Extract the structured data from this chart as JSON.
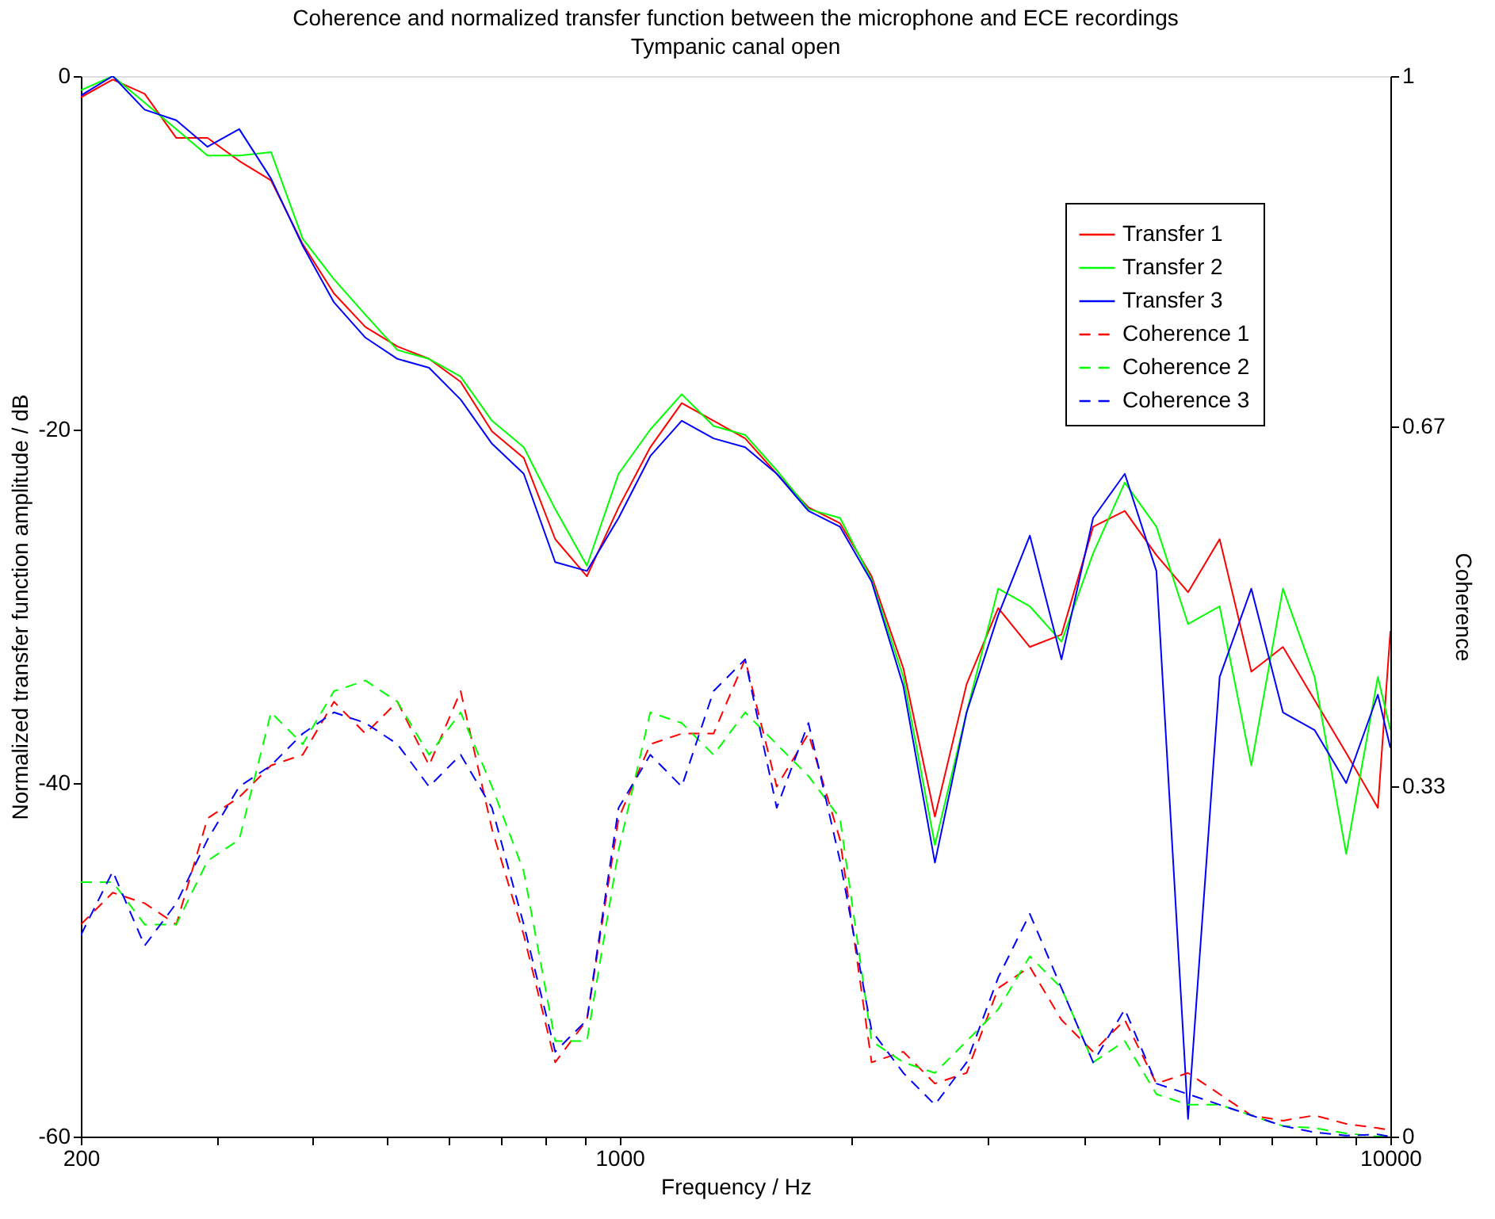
{
  "chart_data": {
    "type": "line",
    "title": "Coherence and normalized transfer function between the microphone and ECE recordings",
    "subtitle": "Tympanic canal open",
    "xlabel": "Frequency / Hz",
    "ylabel": "Normalized transfer function amplitude / dB",
    "y2label": "Coherence",
    "log": "x",
    "xlim": [
      200,
      10000
    ],
    "xticks": [
      200,
      {
        "value": 300,
        "label": null
      },
      {
        "value": 400,
        "label": null
      },
      {
        "value": 500,
        "label": null
      },
      {
        "value": 600,
        "label": null
      },
      {
        "value": 700,
        "label": null
      },
      {
        "value": 800,
        "label": null
      },
      {
        "value": 900,
        "label": null
      },
      1000,
      {
        "value": 2000,
        "label": null
      },
      {
        "value": 3000,
        "label": null
      },
      {
        "value": 4000,
        "label": null
      },
      {
        "value": 5000,
        "label": null
      },
      {
        "value": 6000,
        "label": null
      },
      {
        "value": 7000,
        "label": null
      },
      {
        "value": 8000,
        "label": null
      },
      {
        "value": 9000,
        "label": null
      },
      10000
    ],
    "ylim": [
      -60,
      0
    ],
    "yticks": [
      -60,
      -40,
      -20,
      0
    ],
    "y2lim": [
      0,
      1
    ],
    "y2ticks": [
      0,
      0.33,
      0.67,
      1
    ],
    "legend": "top right",
    "grid": false,
    "x": [
      200,
      220,
      242,
      266,
      292,
      321,
      353,
      388,
      426,
      468,
      515,
      566,
      622,
      683,
      751,
      825,
      907,
      997,
      1096,
      1204,
      1324,
      1455,
      1599,
      1758,
      1932,
      2123,
      2334,
      2565,
      2820,
      3099,
      3406,
      3744,
      4115,
      4523,
      4971,
      5464,
      6005,
      6601,
      7255,
      7974,
      8764,
      9633,
      10000
    ],
    "series": [
      {
        "name": "Transfer 1",
        "color": "#ff0000",
        "line_style": "solid",
        "values": [
          -1.2,
          -0.2,
          -1.0,
          -3.5,
          -3.5,
          -4.8,
          -5.9,
          -9.5,
          -12.3,
          -14.2,
          -15.3,
          -16,
          -17.3,
          -20.1,
          -21.6,
          -26.2,
          -28.3,
          -24.4,
          -21,
          -18.5,
          -19.5,
          -20.5,
          -22.5,
          -24.4,
          -25.3,
          -28.3,
          -33.5,
          -41.9,
          -34.4,
          -30.1,
          -32.3,
          -31.6,
          -25.5,
          -24.6,
          -27.1,
          -29.2,
          -26.2,
          -33.7,
          -32.3,
          -35.3,
          -38.3,
          -41.4,
          -31.4
        ]
      },
      {
        "name": "Transfer 2",
        "color": "#00ff00",
        "line_style": "solid",
        "values": [
          -0.8,
          0,
          -1.5,
          -3,
          -4.5,
          -4.5,
          -4.3,
          -9.2,
          -11.5,
          -13.5,
          -15.5,
          -16,
          -17,
          -19.5,
          -21,
          -24.5,
          -27.7,
          -22.5,
          -20,
          -18,
          -19.8,
          -20.3,
          -22.3,
          -24.5,
          -25,
          -28.5,
          -34,
          -43.5,
          -36,
          -29,
          -30,
          -32,
          -27,
          -23,
          -25.5,
          -31,
          -30,
          -39,
          -29,
          -34,
          -44,
          -34,
          -37
        ]
      },
      {
        "name": "Transfer 3",
        "color": "#0000ff",
        "line_style": "solid",
        "values": [
          -1.1,
          0,
          -1.9,
          -2.5,
          -4,
          -3,
          -5.8,
          -9.6,
          -12.8,
          -14.8,
          -16,
          -16.5,
          -18.3,
          -20.8,
          -22.5,
          -27.5,
          -28,
          -25,
          -21.5,
          -19.5,
          -20.5,
          -21,
          -22.5,
          -24.6,
          -25.5,
          -28.6,
          -34.5,
          -44.5,
          -36,
          -30.5,
          -26,
          -33,
          -25,
          -22.5,
          -28,
          -59,
          -34,
          -29,
          -36,
          -37,
          -40,
          -35,
          -38
        ]
      },
      {
        "name": "Coherence 1",
        "color": "#ff0000",
        "line_style": "dashed",
        "axis": "y2",
        "values": [
          0.2,
          0.23,
          0.22,
          0.2,
          0.3,
          0.32,
          0.35,
          0.36,
          0.41,
          0.38,
          0.41,
          0.35,
          0.42,
          0.29,
          0.19,
          0.07,
          0.11,
          0.3,
          0.37,
          0.38,
          0.38,
          0.45,
          0.33,
          0.38,
          0.28,
          0.07,
          0.08,
          0.05,
          0.06,
          0.14,
          0.16,
          0.11,
          0.08,
          0.11,
          0.05,
          0.06,
          0.04,
          0.02,
          0.015,
          0.02,
          0.012,
          0.008,
          0.006
        ]
      },
      {
        "name": "Coherence 2",
        "color": "#00ff00",
        "line_style": "dashed",
        "axis": "y2",
        "values": [
          0.24,
          0.24,
          0.2,
          0.2,
          0.26,
          0.28,
          0.4,
          0.37,
          0.42,
          0.43,
          0.41,
          0.36,
          0.4,
          0.33,
          0.25,
          0.09,
          0.09,
          0.27,
          0.4,
          0.39,
          0.36,
          0.4,
          0.37,
          0.34,
          0.3,
          0.09,
          0.07,
          0.06,
          0.09,
          0.12,
          0.17,
          0.14,
          0.07,
          0.09,
          0.04,
          0.03,
          0.03,
          0.02,
          0.01,
          0.008,
          0.003,
          0,
          0.001
        ]
      },
      {
        "name": "Coherence 3",
        "color": "#0000ff",
        "line_style": "dashed",
        "axis": "y2",
        "values": [
          0.19,
          0.25,
          0.18,
          0.22,
          0.28,
          0.33,
          0.35,
          0.38,
          0.4,
          0.39,
          0.37,
          0.33,
          0.36,
          0.31,
          0.2,
          0.08,
          0.11,
          0.31,
          0.36,
          0.33,
          0.42,
          0.45,
          0.31,
          0.39,
          0.26,
          0.1,
          0.06,
          0.03,
          0.07,
          0.15,
          0.21,
          0.14,
          0.07,
          0.12,
          0.05,
          0.04,
          0.03,
          0.02,
          0.01,
          0.004,
          0.001,
          0.002,
          0
        ]
      }
    ]
  }
}
